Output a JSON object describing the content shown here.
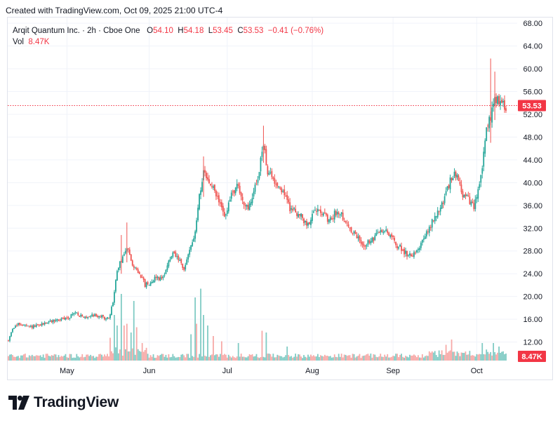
{
  "header": {
    "created_text": "Created with TradingView.com, Oct 09, 2025 21:00 UTC-4"
  },
  "legend": {
    "symbol": "Arqit Quantum Inc. · 2h · Cboe One",
    "open_label": "O",
    "open": "54.10",
    "high_label": "H",
    "high": "54.18",
    "low_label": "L",
    "low": "53.45",
    "close_label": "C",
    "close": "53.53",
    "change": "−0.41 (−0.76%)",
    "vol_label": "Vol",
    "vol": "8.47K"
  },
  "brand": {
    "name": "TradingView"
  },
  "colors": {
    "up": "#26a69a",
    "down": "#ef5350",
    "grid": "#f0f3fa",
    "price_line": "#f23645",
    "axis_text": "#131722"
  },
  "chart_data": {
    "type": "candlestick",
    "y_ticks": [
      "12.00",
      "16.00",
      "20.00",
      "24.00",
      "28.00",
      "32.00",
      "36.00",
      "40.00",
      "44.00",
      "48.00",
      "52.00",
      "56.00",
      "60.00",
      "64.00",
      "68.00"
    ],
    "ylim": [
      8.5,
      69
    ],
    "x_ticks": [
      {
        "label": "May",
        "index": 42
      },
      {
        "label": "Jun",
        "index": 101
      },
      {
        "label": "Jul",
        "index": 157
      },
      {
        "label": "Aug",
        "index": 218
      },
      {
        "label": "Sep",
        "index": 276
      },
      {
        "label": "Oct",
        "index": 336
      }
    ],
    "last_price": "53.53",
    "last_volume": "8.47K",
    "price_anchors": [
      [
        0,
        12.2
      ],
      [
        3,
        14.5
      ],
      [
        8,
        15.2
      ],
      [
        15,
        14.6
      ],
      [
        22,
        14.9
      ],
      [
        28,
        15.5
      ],
      [
        35,
        15.9
      ],
      [
        42,
        16.2
      ],
      [
        48,
        17.2
      ],
      [
        54,
        16.2
      ],
      [
        60,
        16.8
      ],
      [
        66,
        16.5
      ],
      [
        72,
        16.0
      ],
      [
        75,
        19.0
      ],
      [
        78,
        24.5
      ],
      [
        82,
        27.0
      ],
      [
        86,
        28.5
      ],
      [
        90,
        25.0
      ],
      [
        94,
        24.2
      ],
      [
        98,
        22.0
      ],
      [
        102,
        22.5
      ],
      [
        106,
        23.5
      ],
      [
        110,
        23.0
      ],
      [
        114,
        25.5
      ],
      [
        118,
        27.5
      ],
      [
        122,
        26.5
      ],
      [
        126,
        24.5
      ],
      [
        130,
        28.5
      ],
      [
        134,
        31.0
      ],
      [
        137,
        38.0
      ],
      [
        140,
        41.5
      ],
      [
        144,
        40.0
      ],
      [
        148,
        38.5
      ],
      [
        152,
        36.0
      ],
      [
        156,
        34.0
      ],
      [
        160,
        38.0
      ],
      [
        164,
        39.5
      ],
      [
        168,
        37.0
      ],
      [
        172,
        35.0
      ],
      [
        176,
        38.5
      ],
      [
        180,
        42.0
      ],
      [
        183,
        47.0
      ],
      [
        186,
        42.0
      ],
      [
        190,
        40.5
      ],
      [
        194,
        39.5
      ],
      [
        198,
        38.0
      ],
      [
        202,
        35.5
      ],
      [
        206,
        35.0
      ],
      [
        210,
        34.0
      ],
      [
        214,
        32.5
      ],
      [
        218,
        34.0
      ],
      [
        222,
        36.0
      ],
      [
        226,
        34.5
      ],
      [
        230,
        33.0
      ],
      [
        234,
        34.5
      ],
      [
        238,
        35.0
      ],
      [
        242,
        33.0
      ],
      [
        246,
        31.5
      ],
      [
        250,
        30.5
      ],
      [
        254,
        29.0
      ],
      [
        258,
        29.5
      ],
      [
        262,
        30.0
      ],
      [
        266,
        31.5
      ],
      [
        270,
        31.5
      ],
      [
        274,
        31.0
      ],
      [
        278,
        29.0
      ],
      [
        282,
        28.5
      ],
      [
        286,
        27.3
      ],
      [
        290,
        27.5
      ],
      [
        294,
        28.5
      ],
      [
        298,
        30.0
      ],
      [
        302,
        32.0
      ],
      [
        306,
        34.0
      ],
      [
        310,
        35.5
      ],
      [
        314,
        38.0
      ],
      [
        318,
        41.0
      ],
      [
        322,
        41.5
      ],
      [
        326,
        38.0
      ],
      [
        330,
        37.0
      ],
      [
        334,
        35.5
      ],
      [
        337,
        38.5
      ],
      [
        340,
        43.0
      ],
      [
        343,
        49.0
      ],
      [
        346,
        51.5
      ],
      [
        349,
        55.0
      ],
      [
        352,
        54.5
      ],
      [
        355,
        53.5
      ]
    ],
    "volume_spikes": [
      [
        73,
        1.3
      ],
      [
        76,
        2.6
      ],
      [
        78,
        2.0
      ],
      [
        81,
        3.8
      ],
      [
        83,
        2.0
      ],
      [
        85,
        2.1
      ],
      [
        88,
        1.6
      ],
      [
        90,
        3.4
      ],
      [
        92,
        1.9
      ],
      [
        96,
        1.0
      ],
      [
        131,
        1.5
      ],
      [
        134,
        3.6
      ],
      [
        135,
        2.1
      ],
      [
        138,
        4.1
      ],
      [
        140,
        2.6
      ],
      [
        143,
        2.0
      ],
      [
        147,
        1.4
      ],
      [
        153,
        1.1
      ],
      [
        165,
        1.0
      ],
      [
        182,
        1.7
      ],
      [
        185,
        1.6
      ],
      [
        200,
        0.8
      ],
      [
        314,
        0.9
      ],
      [
        318,
        1.2
      ],
      [
        340,
        1.0
      ],
      [
        348,
        1.0
      ],
      [
        352,
        0.8
      ]
    ]
  }
}
